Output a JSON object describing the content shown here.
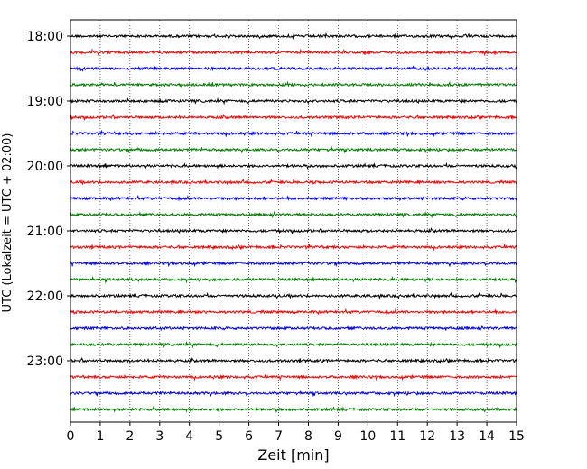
{
  "chart_data": {
    "type": "line",
    "title": "",
    "xlabel": "Zeit  [min]",
    "ylabel": "UTC (Lokalzeit = UTC + 02:00)",
    "xlim": [
      0,
      15
    ],
    "x_ticks": [
      "0",
      "1",
      "2",
      "3",
      "4",
      "5",
      "6",
      "7",
      "8",
      "9",
      "10",
      "11",
      "12",
      "13",
      "14",
      "15"
    ],
    "y_ticks": [
      "18:00",
      "19:00",
      "20:00",
      "21:00",
      "22:00",
      "23:00"
    ],
    "grid": "vertical dotted at each minute",
    "legend": "none",
    "trace_colors": [
      "#000000",
      "#ff0000",
      "#0000ff",
      "#007f00"
    ],
    "traces": [
      {
        "start": "18:00",
        "color": "#000000"
      },
      {
        "start": "18:15",
        "color": "#ff0000"
      },
      {
        "start": "18:30",
        "color": "#0000ff"
      },
      {
        "start": "18:45",
        "color": "#007f00"
      },
      {
        "start": "19:00",
        "color": "#000000"
      },
      {
        "start": "19:15",
        "color": "#ff0000"
      },
      {
        "start": "19:30",
        "color": "#0000ff"
      },
      {
        "start": "19:45",
        "color": "#007f00"
      },
      {
        "start": "20:00",
        "color": "#000000"
      },
      {
        "start": "20:15",
        "color": "#ff0000"
      },
      {
        "start": "20:30",
        "color": "#0000ff"
      },
      {
        "start": "20:45",
        "color": "#007f00"
      },
      {
        "start": "21:00",
        "color": "#000000"
      },
      {
        "start": "21:15",
        "color": "#ff0000"
      },
      {
        "start": "21:30",
        "color": "#0000ff"
      },
      {
        "start": "21:45",
        "color": "#007f00"
      },
      {
        "start": "22:00",
        "color": "#000000"
      },
      {
        "start": "22:15",
        "color": "#ff0000"
      },
      {
        "start": "22:30",
        "color": "#0000ff"
      },
      {
        "start": "22:45",
        "color": "#007f00"
      },
      {
        "start": "23:00",
        "color": "#000000"
      },
      {
        "start": "23:15",
        "color": "#ff0000"
      },
      {
        "start": "23:30",
        "color": "#0000ff"
      },
      {
        "start": "23:45",
        "color": "#007f00"
      }
    ]
  }
}
